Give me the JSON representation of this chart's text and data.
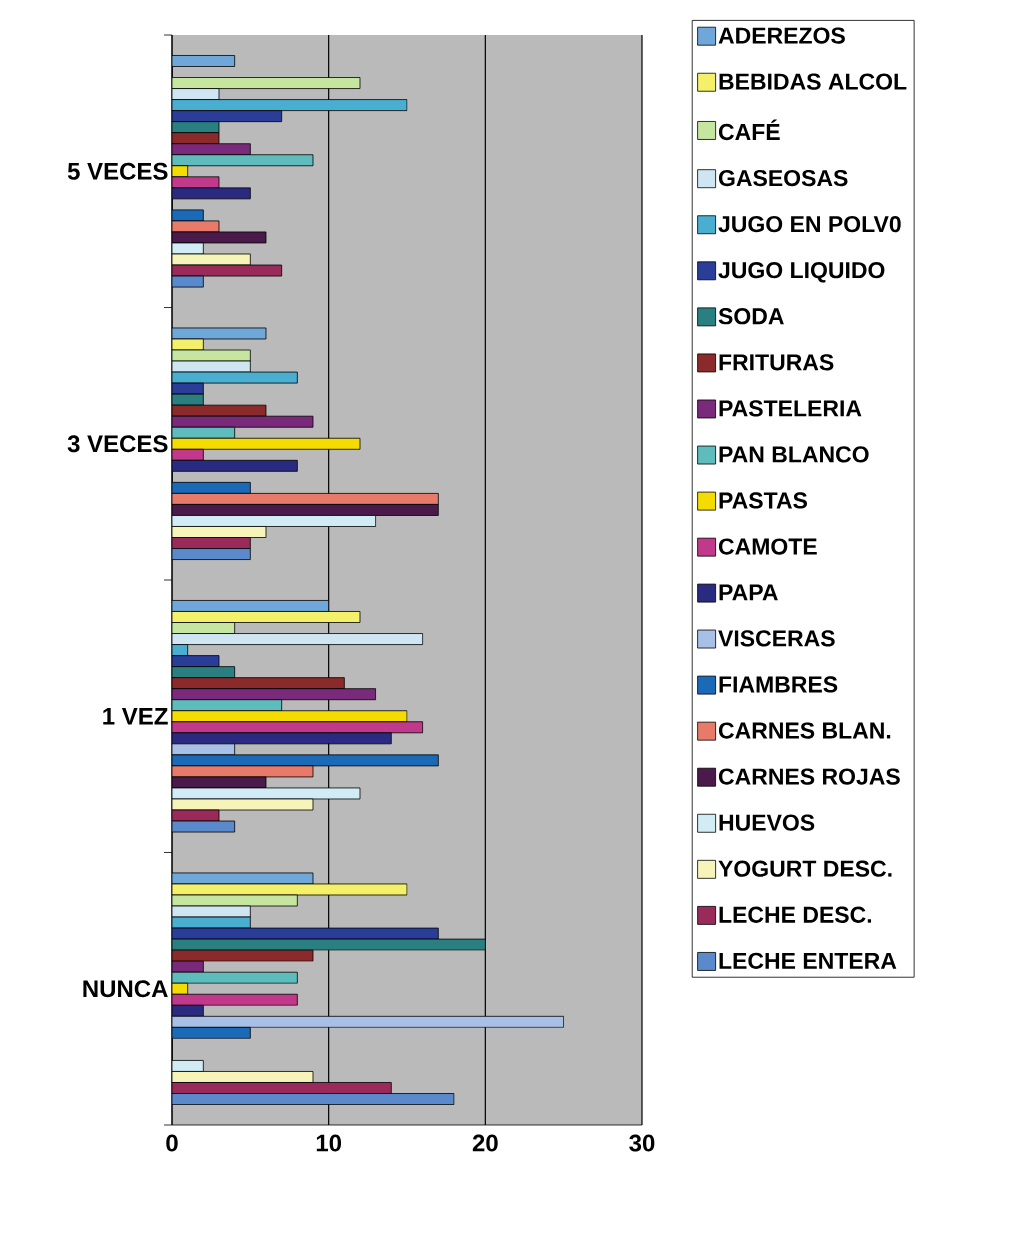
{
  "chart_data": {
    "type": "bar",
    "orientation": "horizontal",
    "categories": [
      "5 VECES",
      "3 VECES",
      "1 VEZ",
      "NUNCA"
    ],
    "series": [
      {
        "name": "ADEREZOS",
        "color": "#6fa8d8",
        "values": [
          4,
          6,
          10,
          9
        ]
      },
      {
        "name": "BEBIDAS ALCOL",
        "color": "#f5f06a",
        "values": [
          0,
          2,
          12,
          15
        ]
      },
      {
        "name": "CAFÉ",
        "color": "#c6e6a0",
        "values": [
          12,
          5,
          4,
          8
        ]
      },
      {
        "name": "GASEOSAS",
        "color": "#cfe6f2",
        "values": [
          3,
          5,
          16,
          5
        ]
      },
      {
        "name": "JUGO EN POLV0",
        "color": "#4aaed0",
        "values": [
          15,
          8,
          1,
          5
        ]
      },
      {
        "name": "JUGO LIQUIDO",
        "color": "#2a3d98",
        "values": [
          7,
          2,
          3,
          17
        ]
      },
      {
        "name": "SODA",
        "color": "#2a8080",
        "values": [
          3,
          2,
          4,
          20
        ]
      },
      {
        "name": "FRITURAS",
        "color": "#8a2a2a",
        "values": [
          3,
          6,
          11,
          9
        ]
      },
      {
        "name": "PASTELERIA",
        "color": "#7a2a7a",
        "values": [
          5,
          9,
          13,
          2
        ]
      },
      {
        "name": "PAN BLANCO",
        "color": "#5fbcbc",
        "values": [
          9,
          4,
          7,
          8
        ]
      },
      {
        "name": "PASTAS",
        "color": "#f5dc00",
        "values": [
          1,
          12,
          15,
          1
        ]
      },
      {
        "name": "CAMOTE",
        "color": "#c0398a",
        "values": [
          3,
          2,
          16,
          8
        ]
      },
      {
        "name": "PAPA",
        "color": "#2a2a80",
        "values": [
          5,
          8,
          14,
          2
        ]
      },
      {
        "name": "VISCERAS",
        "color": "#a8c0e6",
        "values": [
          0,
          0,
          4,
          25
        ]
      },
      {
        "name": "FIAMBRES",
        "color": "#1a6ab8",
        "values": [
          2,
          5,
          17,
          5
        ]
      },
      {
        "name": "CARNES BLAN.",
        "color": "#e87a6a",
        "values": [
          3,
          17,
          9,
          0
        ]
      },
      {
        "name": "CARNES ROJAS",
        "color": "#4a1a4a",
        "values": [
          6,
          17,
          6,
          0
        ]
      },
      {
        "name": "HUEVOS",
        "color": "#d2ecf6",
        "values": [
          2,
          13,
          12,
          2
        ]
      },
      {
        "name": "YOGURT DESC.",
        "color": "#f6f4b8",
        "values": [
          5,
          6,
          9,
          9
        ]
      },
      {
        "name": "LECHE DESC.",
        "color": "#9a2a5a",
        "values": [
          7,
          5,
          3,
          14
        ]
      },
      {
        "name": "LECHE ENTERA",
        "color": "#5a8acc",
        "values": [
          2,
          5,
          4,
          18
        ]
      }
    ],
    "xlim": [
      0,
      30
    ],
    "xticks": [
      0,
      10,
      20,
      30
    ],
    "grid": "x",
    "legend": "right"
  }
}
